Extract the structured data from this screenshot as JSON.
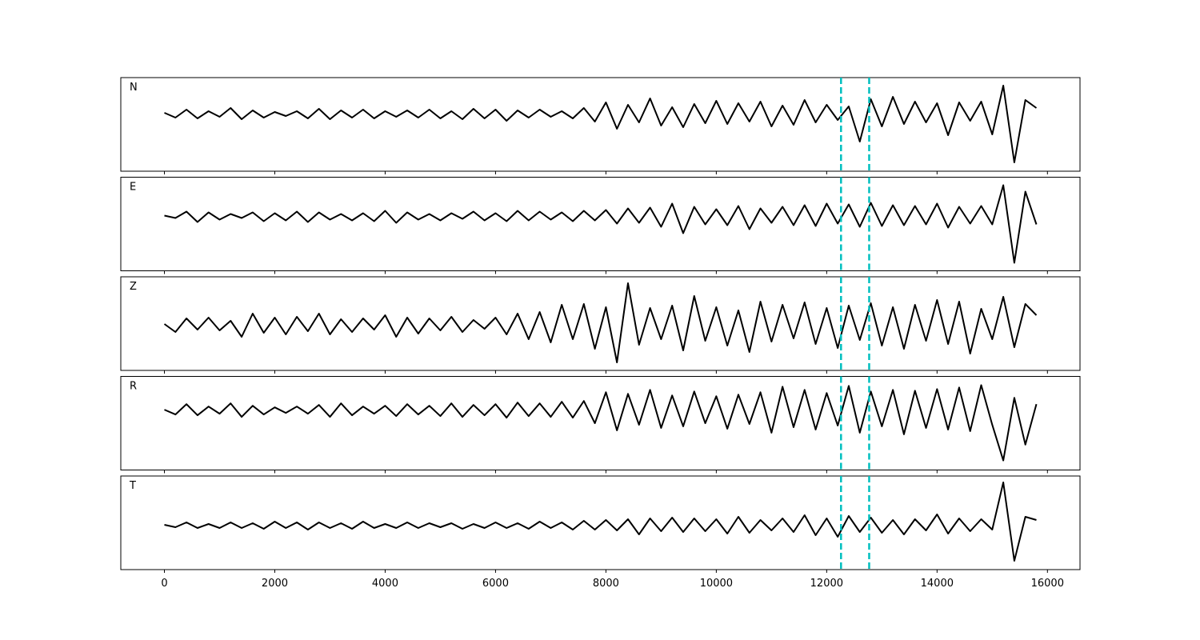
{
  "chart_data": {
    "type": "line",
    "x": [
      0,
      200,
      400,
      600,
      800,
      1000,
      1200,
      1400,
      1600,
      1800,
      2000,
      2200,
      2400,
      2600,
      2800,
      3000,
      3200,
      3400,
      3600,
      3800,
      4000,
      4200,
      4400,
      4600,
      4800,
      5000,
      5200,
      5400,
      5600,
      5800,
      6000,
      6200,
      6400,
      6600,
      6800,
      7000,
      7200,
      7400,
      7600,
      7800,
      8000,
      8200,
      8400,
      8600,
      8800,
      9000,
      9200,
      9400,
      9600,
      9800,
      10000,
      10200,
      10400,
      10600,
      10800,
      11000,
      11200,
      11400,
      11600,
      11800,
      12000,
      12200,
      12400,
      12600,
      12800,
      13000,
      13200,
      13400,
      13600,
      13800,
      14000,
      14200,
      14400,
      14600,
      14800,
      15000,
      15200,
      15400,
      15600,
      15800
    ],
    "xlim": [
      -790,
      16590
    ],
    "xticks": [
      0,
      2000,
      4000,
      6000,
      8000,
      10000,
      12000,
      14000,
      16000
    ],
    "vlines": [
      12260,
      12770
    ],
    "vline_color": "#00bfbf",
    "series": [
      {
        "name": "N",
        "color": "#000000",
        "ylim": [
          -7.1,
          4.6
        ],
        "values": [
          0.2,
          -0.4,
          0.6,
          -0.5,
          0.4,
          -0.3,
          0.8,
          -0.6,
          0.5,
          -0.4,
          0.3,
          -0.2,
          0.4,
          -0.5,
          0.7,
          -0.6,
          0.5,
          -0.4,
          0.6,
          -0.5,
          0.4,
          -0.3,
          0.5,
          -0.4,
          0.6,
          -0.5,
          0.4,
          -0.6,
          0.7,
          -0.5,
          0.6,
          -0.8,
          0.5,
          -0.4,
          0.6,
          -0.3,
          0.4,
          -0.5,
          0.8,
          -0.9,
          1.5,
          -1.8,
          1.2,
          -1.0,
          2.0,
          -1.4,
          0.9,
          -1.6,
          1.3,
          -1.1,
          1.7,
          -1.2,
          1.4,
          -0.9,
          1.6,
          -1.5,
          1.1,
          -1.3,
          1.8,
          -1.0,
          1.2,
          -0.7,
          1.0,
          -3.4,
          1.9,
          -1.5,
          2.2,
          -1.2,
          1.6,
          -1.0,
          1.4,
          -2.6,
          1.5,
          -0.8,
          1.6,
          -2.5,
          3.6,
          -6.0,
          1.8,
          0.8
        ]
      },
      {
        "name": "E",
        "color": "#000000",
        "ylim": [
          -6.8,
          4.9
        ],
        "values": [
          0.1,
          -0.2,
          0.6,
          -0.7,
          0.5,
          -0.4,
          0.3,
          -0.2,
          0.5,
          -0.6,
          0.4,
          -0.5,
          0.6,
          -0.7,
          0.5,
          -0.4,
          0.3,
          -0.5,
          0.4,
          -0.6,
          0.7,
          -0.8,
          0.5,
          -0.4,
          0.3,
          -0.5,
          0.4,
          -0.3,
          0.6,
          -0.5,
          0.4,
          -0.6,
          0.7,
          -0.5,
          0.6,
          -0.4,
          0.5,
          -0.6,
          0.7,
          -0.5,
          0.8,
          -0.9,
          1.0,
          -0.8,
          1.1,
          -1.3,
          1.6,
          -2.1,
          1.2,
          -1.0,
          0.9,
          -1.1,
          1.3,
          -1.6,
          1.0,
          -0.8,
          1.2,
          -1.1,
          1.4,
          -1.2,
          1.6,
          -0.9,
          1.5,
          -1.3,
          1.7,
          -1.2,
          1.4,
          -1.1,
          1.3,
          -1.0,
          1.6,
          -1.4,
          1.2,
          -0.9,
          1.3,
          -1.0,
          3.9,
          -5.8,
          3.1,
          -1.0
        ]
      },
      {
        "name": "Z",
        "color": "#000000",
        "ylim": [
          -5.7,
          6.0
        ],
        "values": [
          0.1,
          -0.9,
          0.8,
          -0.6,
          0.9,
          -0.7,
          0.5,
          -1.5,
          1.4,
          -1.0,
          0.9,
          -1.2,
          1.0,
          -0.8,
          1.4,
          -1.2,
          0.7,
          -0.9,
          0.8,
          -0.6,
          1.2,
          -1.5,
          0.9,
          -1.1,
          0.8,
          -0.7,
          1.0,
          -0.9,
          0.6,
          -0.5,
          0.9,
          -1.2,
          1.4,
          -1.8,
          1.6,
          -2.2,
          2.5,
          -1.8,
          2.6,
          -3.0,
          2.2,
          -4.7,
          5.2,
          -2.5,
          2.1,
          -1.8,
          2.4,
          -3.2,
          3.6,
          -2.0,
          2.2,
          -2.6,
          1.8,
          -3.4,
          2.9,
          -2.1,
          2.5,
          -1.7,
          2.8,
          -2.4,
          2.1,
          -2.9,
          2.4,
          -1.9,
          2.7,
          -2.6,
          2.2,
          -3.0,
          2.5,
          -2.0,
          3.1,
          -2.4,
          2.9,
          -3.6,
          2.0,
          -1.8,
          3.5,
          -2.8,
          2.6,
          1.2
        ]
      },
      {
        "name": "R",
        "color": "#000000",
        "ylim": [
          -7.5,
          4.3
        ],
        "values": [
          0.1,
          -0.5,
          0.8,
          -0.6,
          0.5,
          -0.4,
          0.9,
          -0.8,
          0.6,
          -0.5,
          0.4,
          -0.3,
          0.5,
          -0.4,
          0.7,
          -0.8,
          0.9,
          -0.6,
          0.5,
          -0.4,
          0.6,
          -0.7,
          0.8,
          -0.5,
          0.6,
          -0.7,
          0.9,
          -0.8,
          0.7,
          -0.6,
          0.8,
          -0.9,
          1.0,
          -0.7,
          0.9,
          -0.8,
          1.1,
          -0.9,
          1.2,
          -1.6,
          2.3,
          -2.5,
          2.1,
          -1.8,
          2.6,
          -2.2,
          1.9,
          -2.0,
          2.4,
          -1.6,
          1.8,
          -2.3,
          2.0,
          -1.7,
          2.3,
          -2.8,
          3.0,
          -2.1,
          2.6,
          -2.4,
          2.2,
          -1.9,
          3.1,
          -2.8,
          2.4,
          -2.0,
          2.6,
          -3.0,
          2.5,
          -2.2,
          2.7,
          -2.4,
          2.9,
          -2.6,
          3.2,
          -1.8,
          -6.3,
          1.6,
          -4.3,
          0.8
        ]
      },
      {
        "name": "T",
        "color": "#000000",
        "ylim": [
          -5.5,
          6.2
        ],
        "values": [
          0.1,
          -0.2,
          0.4,
          -0.3,
          0.2,
          -0.3,
          0.4,
          -0.3,
          0.3,
          -0.4,
          0.5,
          -0.3,
          0.4,
          -0.5,
          0.4,
          -0.3,
          0.3,
          -0.4,
          0.5,
          -0.3,
          0.2,
          -0.3,
          0.4,
          -0.3,
          0.3,
          -0.2,
          0.3,
          -0.4,
          0.2,
          -0.3,
          0.4,
          -0.3,
          0.3,
          -0.4,
          0.5,
          -0.3,
          0.4,
          -0.5,
          0.6,
          -0.5,
          0.7,
          -0.6,
          0.8,
          -1.1,
          0.9,
          -0.7,
          1.0,
          -0.8,
          0.9,
          -0.7,
          0.8,
          -1.0,
          1.1,
          -0.9,
          0.7,
          -0.6,
          0.9,
          -0.8,
          1.3,
          -1.2,
          0.9,
          -1.4,
          1.2,
          -0.8,
          1.0,
          -0.9,
          0.7,
          -1.1,
          0.8,
          -0.6,
          1.4,
          -1.0,
          0.9,
          -0.7,
          0.8,
          -0.5,
          5.4,
          -4.4,
          1.1,
          0.7
        ]
      }
    ]
  }
}
